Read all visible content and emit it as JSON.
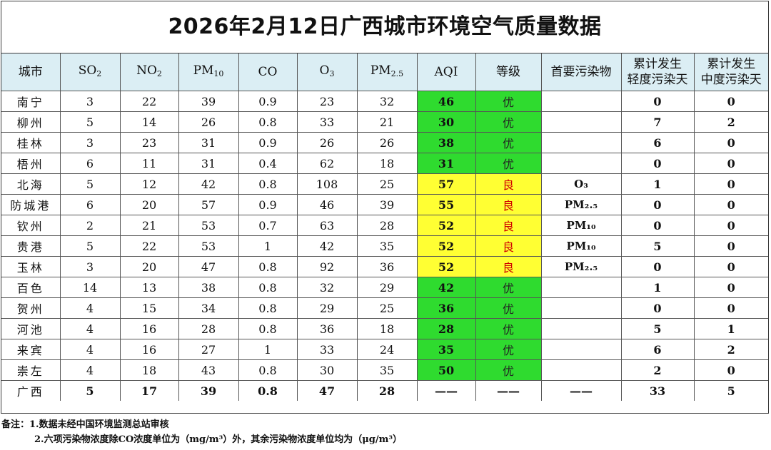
{
  "title": "2026年2月12日广西城市环境空气质量数据",
  "header": {
    "city": "城市",
    "so2": "SO",
    "so2_sub": "2",
    "no2": "NO",
    "no2_sub": "2",
    "pm10": "PM",
    "pm10_sub": "10",
    "co": "CO",
    "o3": "O",
    "o3_sub": "3",
    "pm25": "PM",
    "pm25_sub": "2.5",
    "aqi": "AQI",
    "level": "等级",
    "primary": "首要污染物",
    "mild_line1": "累计发生",
    "mild_line2": "轻度污染天",
    "moderate_line1": "累计发生",
    "moderate_line2": "中度污染天"
  },
  "rows": [
    {
      "city": "南宁",
      "so2": "3",
      "no2": "22",
      "pm10": "39",
      "co": "0.9",
      "o3": "23",
      "pm25": "32",
      "aqi": "46",
      "level": "优",
      "primary": "",
      "mild": "0",
      "moderate": "0"
    },
    {
      "city": "柳州",
      "so2": "5",
      "no2": "14",
      "pm10": "26",
      "co": "0.8",
      "o3": "33",
      "pm25": "21",
      "aqi": "30",
      "level": "优",
      "primary": "",
      "mild": "7",
      "moderate": "2"
    },
    {
      "city": "桂林",
      "so2": "3",
      "no2": "23",
      "pm10": "31",
      "co": "0.9",
      "o3": "26",
      "pm25": "26",
      "aqi": "38",
      "level": "优",
      "primary": "",
      "mild": "6",
      "moderate": "0"
    },
    {
      "city": "梧州",
      "so2": "6",
      "no2": "11",
      "pm10": "31",
      "co": "0.4",
      "o3": "62",
      "pm25": "18",
      "aqi": "31",
      "level": "优",
      "primary": "",
      "mild": "0",
      "moderate": "0"
    },
    {
      "city": "北海",
      "so2": "5",
      "no2": "12",
      "pm10": "42",
      "co": "0.8",
      "o3": "108",
      "pm25": "25",
      "aqi": "57",
      "level": "良",
      "primary": "O₃",
      "mild": "1",
      "moderate": "0"
    },
    {
      "city": "防城港",
      "so2": "6",
      "no2": "20",
      "pm10": "57",
      "co": "0.9",
      "o3": "46",
      "pm25": "39",
      "aqi": "55",
      "level": "良",
      "primary": "PM₂.₅",
      "mild": "0",
      "moderate": "0"
    },
    {
      "city": "钦州",
      "so2": "2",
      "no2": "21",
      "pm10": "53",
      "co": "0.7",
      "o3": "63",
      "pm25": "28",
      "aqi": "52",
      "level": "良",
      "primary": "PM₁₀",
      "mild": "0",
      "moderate": "0"
    },
    {
      "city": "贵港",
      "so2": "5",
      "no2": "22",
      "pm10": "53",
      "co": "1",
      "o3": "42",
      "pm25": "35",
      "aqi": "52",
      "level": "良",
      "primary": "PM₁₀",
      "mild": "5",
      "moderate": "0"
    },
    {
      "city": "玉林",
      "so2": "3",
      "no2": "20",
      "pm10": "47",
      "co": "0.8",
      "o3": "92",
      "pm25": "36",
      "aqi": "52",
      "level": "良",
      "primary": "PM₂.₅",
      "mild": "0",
      "moderate": "0"
    },
    {
      "city": "百色",
      "so2": "14",
      "no2": "13",
      "pm10": "38",
      "co": "0.8",
      "o3": "32",
      "pm25": "29",
      "aqi": "42",
      "level": "优",
      "primary": "",
      "mild": "1",
      "moderate": "0"
    },
    {
      "city": "贺州",
      "so2": "4",
      "no2": "15",
      "pm10": "34",
      "co": "0.8",
      "o3": "29",
      "pm25": "25",
      "aqi": "36",
      "level": "优",
      "primary": "",
      "mild": "0",
      "moderate": "0"
    },
    {
      "city": "河池",
      "so2": "4",
      "no2": "16",
      "pm10": "28",
      "co": "0.8",
      "o3": "36",
      "pm25": "18",
      "aqi": "28",
      "level": "优",
      "primary": "",
      "mild": "5",
      "moderate": "1"
    },
    {
      "city": "来宾",
      "so2": "4",
      "no2": "16",
      "pm10": "27",
      "co": "1",
      "o3": "33",
      "pm25": "24",
      "aqi": "35",
      "level": "优",
      "primary": "",
      "mild": "6",
      "moderate": "2"
    },
    {
      "city": "崇左",
      "so2": "4",
      "no2": "18",
      "pm10": "43",
      "co": "0.8",
      "o3": "30",
      "pm25": "35",
      "aqi": "50",
      "level": "优",
      "primary": "",
      "mild": "2",
      "moderate": "0"
    }
  ],
  "total": {
    "city": "广西",
    "so2": "5",
    "no2": "17",
    "pm10": "39",
    "co": "0.8",
    "o3": "47",
    "pm25": "28",
    "aqi": "——",
    "level": "——",
    "primary": "——",
    "mild": "33",
    "moderate": "5"
  },
  "notes": {
    "line1": "备注：1.数据未经中国环境监测总站审核",
    "line2": "2.六项污染物浓度除CO浓度单位为（mg/m³）外，其余污染物浓度单位均为（μg/m³）"
  },
  "colors": {
    "good": "#2fdb2f",
    "moderate": "#ffff33",
    "moderate_text": "#d00000",
    "header_bg": "#dbeef4"
  }
}
